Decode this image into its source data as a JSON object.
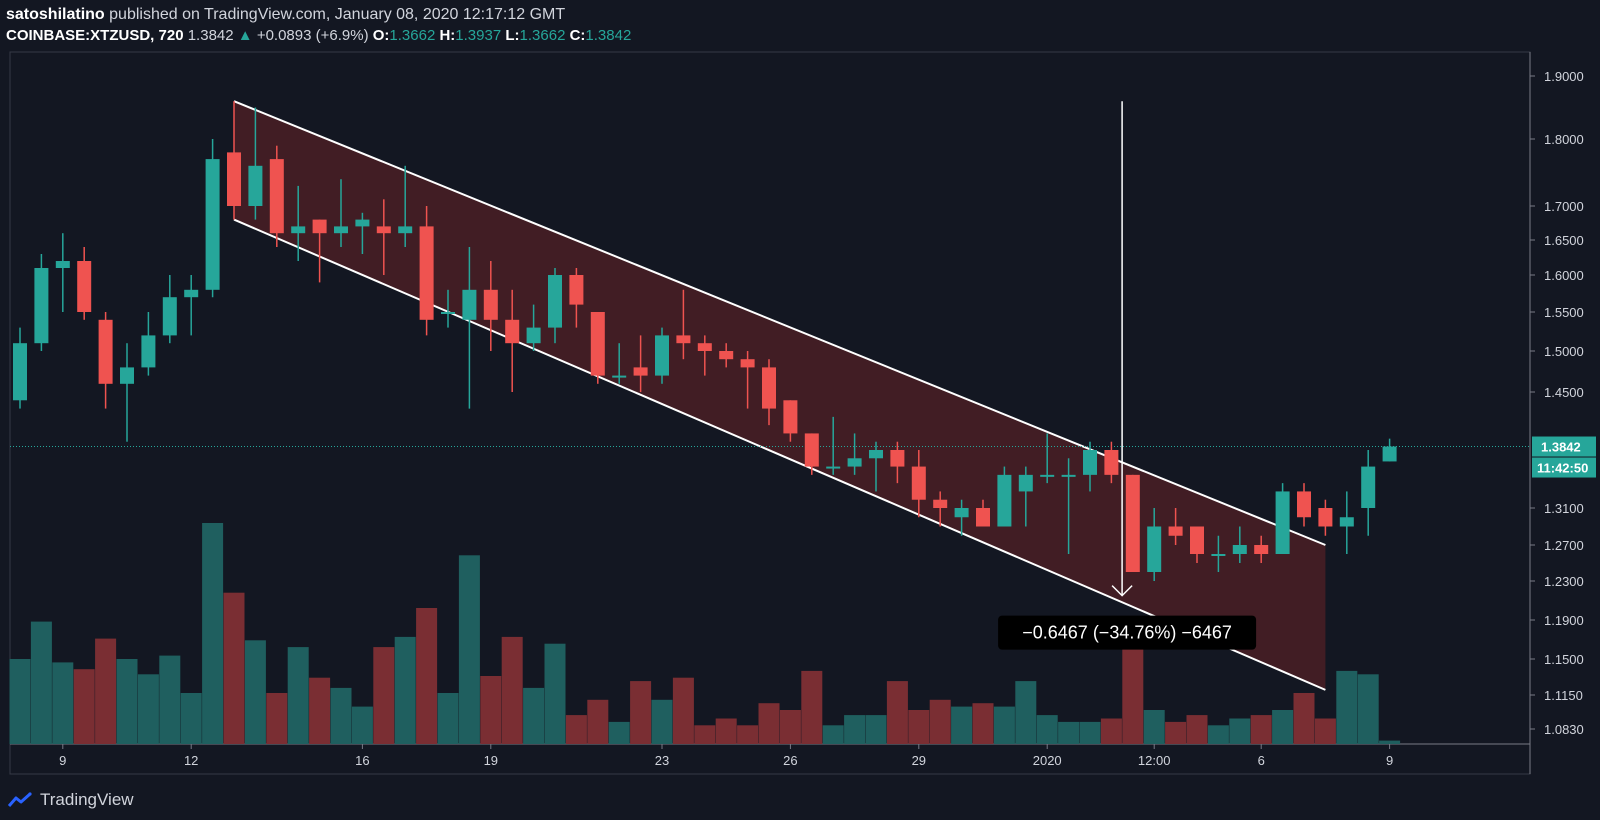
{
  "header": {
    "author": "satoshilatino",
    "published_text": "published on TradingView.com, January 08, 2020 12:17:12 GMT",
    "symbol": "COINBASE:XTZUSD, 720",
    "last_price": "1.3842",
    "change_arrow": "▲",
    "change": "+0.0893 (+6.9%)",
    "o_label": "O:",
    "o_value": "1.3662",
    "h_label": "H:",
    "h_value": "1.3937",
    "l_label": "L:",
    "l_value": "1.3662",
    "c_label": "C:",
    "c_value": "1.3842"
  },
  "footer": {
    "brand": "TradingView"
  },
  "colors": {
    "up": "#26a69a",
    "down": "#ef5350",
    "up_volume": "#1f5f5f",
    "down_volume": "#7a2e33",
    "channel_fill": "#4a1f24",
    "background": "#131722"
  },
  "chart_data": {
    "type": "candlestick",
    "y_axis_labels": [
      "1.9000",
      "1.8000",
      "1.7000",
      "1.6500",
      "1.6000",
      "1.5500",
      "1.5000",
      "1.4500",
      "1.3100",
      "1.2700",
      "1.2300",
      "1.1900",
      "1.1500",
      "1.1150",
      "1.0830"
    ],
    "y_axis_values": [
      1.9,
      1.8,
      1.7,
      1.65,
      1.6,
      1.55,
      1.5,
      1.45,
      1.31,
      1.27,
      1.23,
      1.19,
      1.15,
      1.115,
      1.083
    ],
    "x_axis_labels": [
      "9",
      "12",
      "16",
      "19",
      "23",
      "26",
      "29",
      "2020",
      "12:00",
      "6",
      "9"
    ],
    "x_axis_index": [
      2,
      8,
      16,
      22,
      30,
      36,
      42,
      48,
      53,
      58,
      64
    ],
    "price_label": "1.3842",
    "countdown_label": "11:42:50",
    "current_price": 1.3842,
    "measure_label": "−0.6467 (−34.76%) −6467",
    "candles": [
      {
        "o": 1.44,
        "h": 1.53,
        "l": 1.43,
        "c": 1.51,
        "v": 0.5
      },
      {
        "o": 1.51,
        "h": 1.63,
        "l": 1.5,
        "c": 1.61,
        "v": 0.72
      },
      {
        "o": 1.61,
        "h": 1.66,
        "l": 1.55,
        "c": 1.62,
        "v": 0.48
      },
      {
        "o": 1.62,
        "h": 1.64,
        "l": 1.54,
        "c": 1.55,
        "v": 0.44
      },
      {
        "o": 1.54,
        "h": 1.55,
        "l": 1.43,
        "c": 1.46,
        "v": 0.62
      },
      {
        "o": 1.46,
        "h": 1.51,
        "l": 1.39,
        "c": 1.48,
        "v": 0.5
      },
      {
        "o": 1.48,
        "h": 1.55,
        "l": 1.47,
        "c": 1.52,
        "v": 0.41
      },
      {
        "o": 1.52,
        "h": 1.6,
        "l": 1.51,
        "c": 1.57,
        "v": 0.52
      },
      {
        "o": 1.57,
        "h": 1.6,
        "l": 1.52,
        "c": 1.58,
        "v": 0.3
      },
      {
        "o": 1.58,
        "h": 1.8,
        "l": 1.57,
        "c": 1.77,
        "v": 1.3
      },
      {
        "o": 1.78,
        "h": 1.86,
        "l": 1.68,
        "c": 1.7,
        "v": 0.89
      },
      {
        "o": 1.7,
        "h": 1.85,
        "l": 1.68,
        "c": 1.76,
        "v": 0.61
      },
      {
        "o": 1.77,
        "h": 1.79,
        "l": 1.64,
        "c": 1.66,
        "v": 0.3
      },
      {
        "o": 1.66,
        "h": 1.73,
        "l": 1.62,
        "c": 1.67,
        "v": 0.57
      },
      {
        "o": 1.68,
        "h": 1.68,
        "l": 1.59,
        "c": 1.66,
        "v": 0.39
      },
      {
        "o": 1.66,
        "h": 1.74,
        "l": 1.64,
        "c": 1.67,
        "v": 0.33
      },
      {
        "o": 1.67,
        "h": 1.69,
        "l": 1.63,
        "c": 1.68,
        "v": 0.22
      },
      {
        "o": 1.67,
        "h": 1.71,
        "l": 1.6,
        "c": 1.66,
        "v": 0.57
      },
      {
        "o": 1.66,
        "h": 1.76,
        "l": 1.64,
        "c": 1.67,
        "v": 0.63
      },
      {
        "o": 1.67,
        "h": 1.7,
        "l": 1.52,
        "c": 1.54,
        "v": 0.8
      },
      {
        "o": 1.55,
        "h": 1.58,
        "l": 1.53,
        "c": 1.55,
        "v": 0.3
      },
      {
        "o": 1.54,
        "h": 1.64,
        "l": 1.43,
        "c": 1.58,
        "v": 1.11
      },
      {
        "o": 1.58,
        "h": 1.62,
        "l": 1.5,
        "c": 1.54,
        "v": 0.4
      },
      {
        "o": 1.54,
        "h": 1.58,
        "l": 1.45,
        "c": 1.51,
        "v": 0.63
      },
      {
        "o": 1.51,
        "h": 1.56,
        "l": 1.5,
        "c": 1.53,
        "v": 0.33
      },
      {
        "o": 1.53,
        "h": 1.61,
        "l": 1.51,
        "c": 1.6,
        "v": 0.59
      },
      {
        "o": 1.6,
        "h": 1.61,
        "l": 1.53,
        "c": 1.56,
        "v": 0.17
      },
      {
        "o": 1.55,
        "h": 1.55,
        "l": 1.46,
        "c": 1.47,
        "v": 0.26
      },
      {
        "o": 1.47,
        "h": 1.51,
        "l": 1.46,
        "c": 1.47,
        "v": 0.13
      },
      {
        "o": 1.48,
        "h": 1.52,
        "l": 1.45,
        "c": 1.47,
        "v": 0.37
      },
      {
        "o": 1.47,
        "h": 1.53,
        "l": 1.46,
        "c": 1.52,
        "v": 0.26
      },
      {
        "o": 1.52,
        "h": 1.58,
        "l": 1.49,
        "c": 1.51,
        "v": 0.39
      },
      {
        "o": 1.51,
        "h": 1.52,
        "l": 1.47,
        "c": 1.5,
        "v": 0.11
      },
      {
        "o": 1.5,
        "h": 1.51,
        "l": 1.48,
        "c": 1.49,
        "v": 0.15
      },
      {
        "o": 1.49,
        "h": 1.5,
        "l": 1.43,
        "c": 1.48,
        "v": 0.11
      },
      {
        "o": 1.48,
        "h": 1.49,
        "l": 1.41,
        "c": 1.43,
        "v": 0.24
      },
      {
        "o": 1.44,
        "h": 1.44,
        "l": 1.39,
        "c": 1.4,
        "v": 0.2
      },
      {
        "o": 1.4,
        "h": 1.4,
        "l": 1.35,
        "c": 1.36,
        "v": 0.43
      },
      {
        "o": 1.36,
        "h": 1.42,
        "l": 1.35,
        "c": 1.36,
        "v": 0.11
      },
      {
        "o": 1.36,
        "h": 1.4,
        "l": 1.35,
        "c": 1.37,
        "v": 0.17
      },
      {
        "o": 1.37,
        "h": 1.39,
        "l": 1.33,
        "c": 1.38,
        "v": 0.17
      },
      {
        "o": 1.38,
        "h": 1.39,
        "l": 1.34,
        "c": 1.36,
        "v": 0.37
      },
      {
        "o": 1.36,
        "h": 1.38,
        "l": 1.3,
        "c": 1.32,
        "v": 0.2
      },
      {
        "o": 1.32,
        "h": 1.33,
        "l": 1.29,
        "c": 1.31,
        "v": 0.26
      },
      {
        "o": 1.3,
        "h": 1.32,
        "l": 1.28,
        "c": 1.31,
        "v": 0.22
      },
      {
        "o": 1.31,
        "h": 1.32,
        "l": 1.29,
        "c": 1.29,
        "v": 0.24
      },
      {
        "o": 1.29,
        "h": 1.36,
        "l": 1.29,
        "c": 1.35,
        "v": 0.22
      },
      {
        "o": 1.33,
        "h": 1.36,
        "l": 1.29,
        "c": 1.35,
        "v": 0.37
      },
      {
        "o": 1.35,
        "h": 1.4,
        "l": 1.34,
        "c": 1.35,
        "v": 0.17
      },
      {
        "o": 1.35,
        "h": 1.37,
        "l": 1.26,
        "c": 1.35,
        "v": 0.13
      },
      {
        "o": 1.35,
        "h": 1.39,
        "l": 1.33,
        "c": 1.38,
        "v": 0.13
      },
      {
        "o": 1.38,
        "h": 1.39,
        "l": 1.34,
        "c": 1.35,
        "v": 0.15
      },
      {
        "o": 1.35,
        "h": 1.35,
        "l": 1.24,
        "c": 1.24,
        "v": 0.74
      },
      {
        "o": 1.24,
        "h": 1.31,
        "l": 1.23,
        "c": 1.29,
        "v": 0.2
      },
      {
        "o": 1.29,
        "h": 1.31,
        "l": 1.27,
        "c": 1.28,
        "v": 0.13
      },
      {
        "o": 1.29,
        "h": 1.29,
        "l": 1.25,
        "c": 1.26,
        "v": 0.17
      },
      {
        "o": 1.26,
        "h": 1.28,
        "l": 1.24,
        "c": 1.26,
        "v": 0.11
      },
      {
        "o": 1.26,
        "h": 1.29,
        "l": 1.25,
        "c": 1.27,
        "v": 0.15
      },
      {
        "o": 1.27,
        "h": 1.28,
        "l": 1.25,
        "c": 1.26,
        "v": 0.17
      },
      {
        "o": 1.26,
        "h": 1.34,
        "l": 1.26,
        "c": 1.33,
        "v": 0.2
      },
      {
        "o": 1.33,
        "h": 1.34,
        "l": 1.29,
        "c": 1.3,
        "v": 0.3
      },
      {
        "o": 1.31,
        "h": 1.32,
        "l": 1.28,
        "c": 1.29,
        "v": 0.15
      },
      {
        "o": 1.29,
        "h": 1.33,
        "l": 1.26,
        "c": 1.3,
        "v": 0.43
      },
      {
        "o": 1.31,
        "h": 1.38,
        "l": 1.28,
        "c": 1.36,
        "v": 0.41
      },
      {
        "o": 1.3662,
        "h": 1.3937,
        "l": 1.3662,
        "c": 1.3842,
        "v": 0.02
      }
    ],
    "channel_upper": {
      "from": {
        "index": 10,
        "price": 1.86
      },
      "to": {
        "index": 61,
        "price": 1.27
      }
    },
    "channel_lower": {
      "from": {
        "index": 10,
        "price": 1.68
      },
      "to": {
        "index": 61,
        "price": 1.12
      }
    },
    "measure": {
      "index": 51.5,
      "from_price": 1.86,
      "to_price": 1.215
    }
  }
}
